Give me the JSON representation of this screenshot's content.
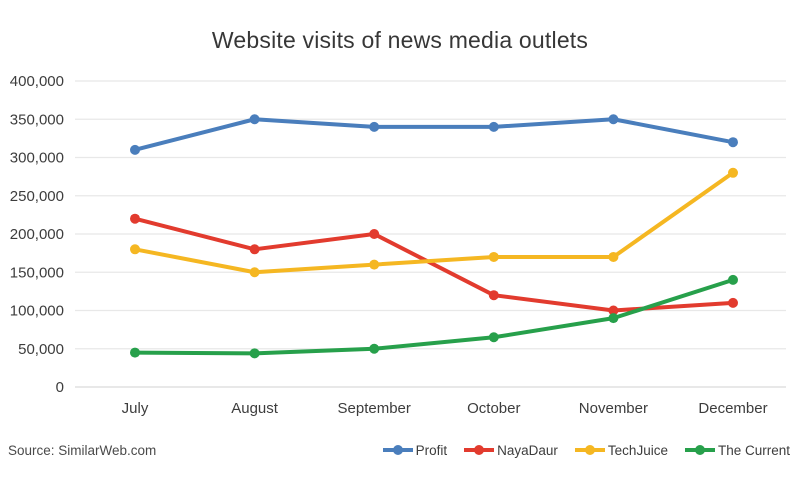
{
  "title": "Website visits of news media outlets",
  "source": "Source: SimilarWeb.com",
  "chart_data": {
    "type": "line",
    "title": "Website visits of news media outlets",
    "categories": [
      "July",
      "August",
      "September",
      "October",
      "November",
      "December"
    ],
    "series": [
      {
        "name": "Profit",
        "color": "#4a7ebc",
        "values": [
          310000,
          350000,
          340000,
          340000,
          350000,
          320000
        ]
      },
      {
        "name": "NayaDaur",
        "color": "#e23b2e",
        "values": [
          220000,
          180000,
          200000,
          120000,
          100000,
          110000
        ]
      },
      {
        "name": "TechJuice",
        "color": "#f5b722",
        "values": [
          180000,
          150000,
          160000,
          170000,
          170000,
          280000
        ]
      },
      {
        "name": "The Current",
        "color": "#27a04b",
        "values": [
          45000,
          44000,
          50000,
          65000,
          90000,
          140000
        ]
      }
    ],
    "xlabel": "",
    "ylabel": "",
    "ylim": [
      0,
      400000
    ],
    "y_tick_step": 50000,
    "grid": true,
    "legend_position": "bottom-right",
    "grid_color": "#e8e8e8",
    "zero_line_color": "#d9d9d9",
    "text_color": "#3d3d3d",
    "source_note": "Source: SimilarWeb.com"
  }
}
